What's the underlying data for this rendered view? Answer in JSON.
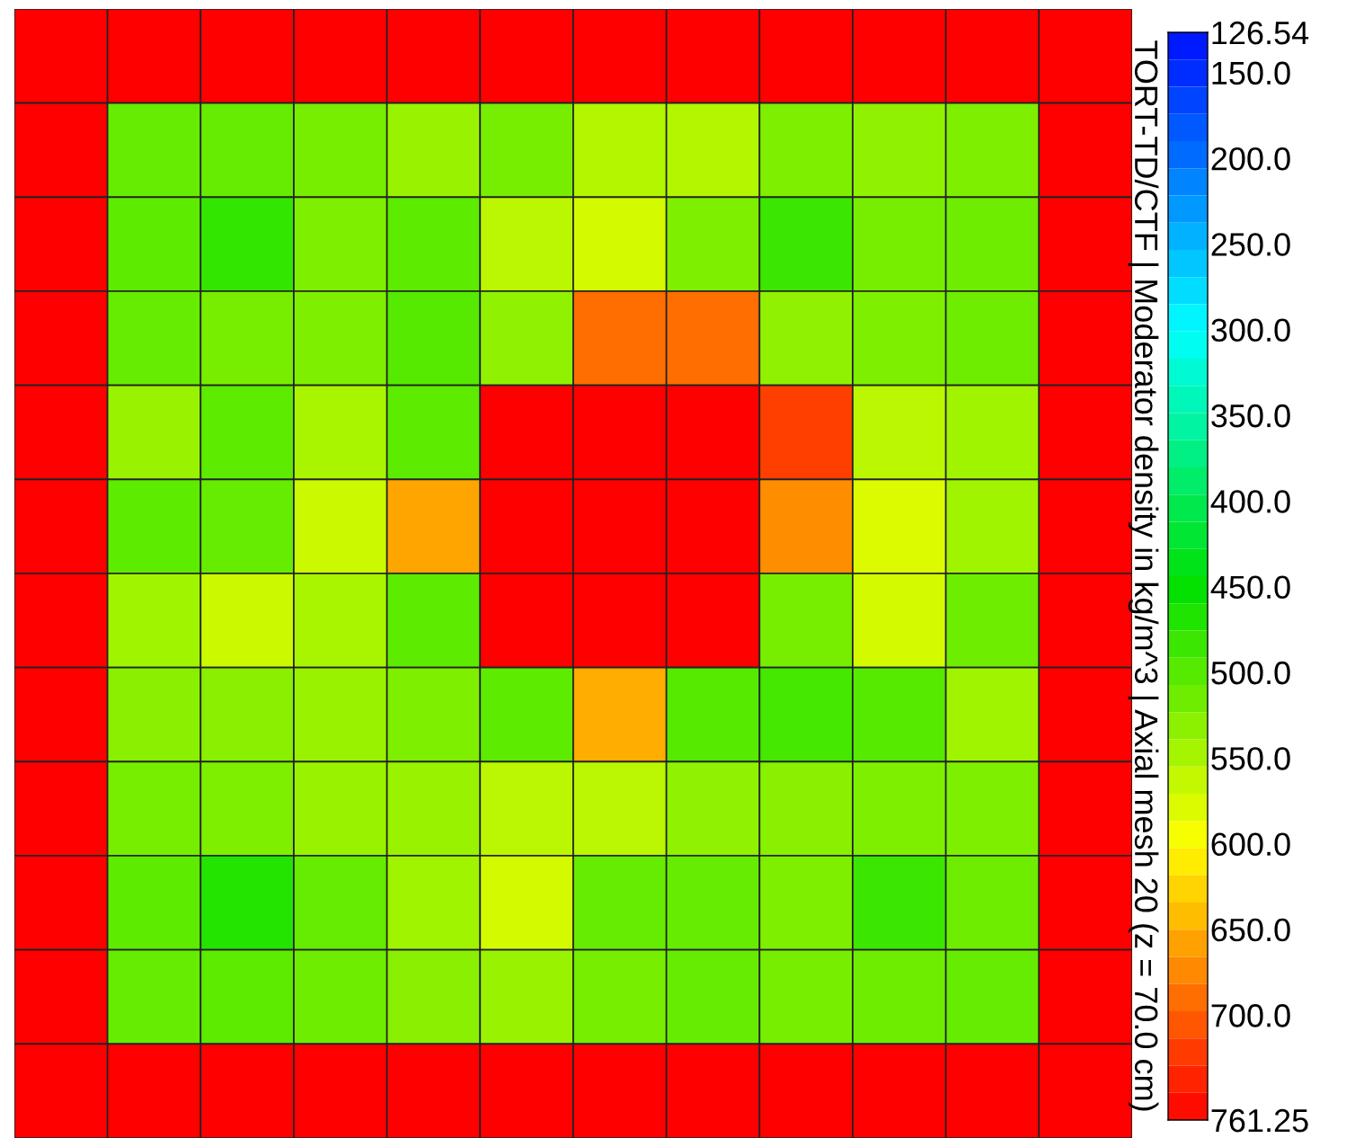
{
  "chart_data": {
    "type": "heatmap",
    "clabel": "TORT-TD/CTF | Moderator density in kg/m^3 | Axial mesh 20 (z = 70.0 cm)",
    "categories": [
      null,
      null,
      null,
      null,
      null,
      null,
      null,
      null,
      null,
      null,
      null,
      null
    ],
    "y_categories": [
      null,
      null,
      null,
      null,
      null,
      null,
      null,
      null,
      null,
      null,
      null,
      null
    ],
    "cells": [
      [
        761.25,
        761.25,
        761.25,
        761.25,
        761.25,
        761.25,
        761.25,
        761.25,
        761.25,
        761.25,
        761.25,
        761.25
      ],
      [
        761.25,
        510,
        510,
        520,
        540,
        520,
        555,
        555,
        525,
        535,
        525,
        761.25
      ],
      [
        761.25,
        505,
        480,
        525,
        505,
        560,
        575,
        525,
        485,
        520,
        515,
        761.25
      ],
      [
        761.25,
        510,
        520,
        525,
        500,
        535,
        690,
        690,
        535,
        525,
        515,
        761.25
      ],
      [
        761.25,
        540,
        505,
        550,
        505,
        761.25,
        761.25,
        761.25,
        720,
        560,
        545,
        761.25
      ],
      [
        761.25,
        505,
        510,
        570,
        655,
        761.25,
        761.25,
        761.25,
        670,
        580,
        545,
        761.25
      ],
      [
        761.25,
        545,
        570,
        550,
        505,
        761.25,
        761.25,
        761.25,
        520,
        575,
        515,
        761.25
      ],
      [
        761.25,
        530,
        530,
        540,
        525,
        505,
        650,
        500,
        490,
        500,
        545,
        761.25
      ],
      [
        761.25,
        520,
        525,
        540,
        540,
        560,
        560,
        535,
        530,
        525,
        525,
        761.25
      ],
      [
        761.25,
        505,
        470,
        510,
        545,
        575,
        510,
        510,
        525,
        485,
        515,
        761.25
      ],
      [
        761.25,
        510,
        505,
        515,
        530,
        540,
        520,
        510,
        520,
        515,
        510,
        761.25
      ],
      [
        761.25,
        761.25,
        761.25,
        761.25,
        761.25,
        761.25,
        761.25,
        761.25,
        761.25,
        761.25,
        761.25,
        761.25
      ]
    ],
    "clim": [
      126.54,
      761.25
    ],
    "cticks": [
      {
        "value": 126.54,
        "label": "126.54"
      },
      {
        "value": 150,
        "label": "150.0"
      },
      {
        "value": 200,
        "label": "200.0"
      },
      {
        "value": 250,
        "label": "250.0"
      },
      {
        "value": 300,
        "label": "300.0"
      },
      {
        "value": 350,
        "label": "350.0"
      },
      {
        "value": 400,
        "label": "400.0"
      },
      {
        "value": 450,
        "label": "450.0"
      },
      {
        "value": 500,
        "label": "500.0"
      },
      {
        "value": 550,
        "label": "550.0"
      },
      {
        "value": 600,
        "label": "600.0"
      },
      {
        "value": 650,
        "label": "650.0"
      },
      {
        "value": 700,
        "label": "700.0"
      },
      {
        "value": 761.25,
        "label": "761.25"
      }
    ],
    "tick_labels": false
  }
}
